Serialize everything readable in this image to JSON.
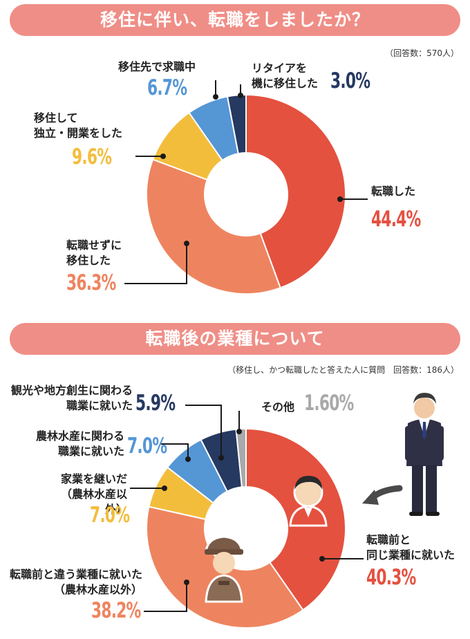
{
  "section1": {
    "title": "移住に伴い、転職をしましたか？",
    "note": "（回答数：570人）",
    "labels": {
      "s0": "転職した",
      "s1": "転職せずに\n移住した",
      "s2": "移住して\n独立・開業をした",
      "s3": "移住先で求職中",
      "s4": "リタイアを\n機に移住した"
    }
  },
  "section2": {
    "title": "転職後の業種について",
    "note": "（移住し、かつ転職したと答えた人に質問　回答数：186人）",
    "labels": {
      "s0": "転職前と\n同じ業種に就いた",
      "s1": "転職前と違う業種に就いた\n（農林水産以外）",
      "s2": "家業を継いだ\n（農林水産以外）",
      "s3": "農林水産に関わる\n職業に就いた",
      "s4": "観光や地方創生に関わる\n職業に就いた",
      "s5": "その他"
    }
  },
  "chart_data": [
    {
      "type": "pie",
      "title": "移住に伴い、転職をしましたか？",
      "note": "（回答数：570人）",
      "slices": [
        {
          "label": "転職した",
          "value": 44.4,
          "display": "44.4%",
          "color": "#e4513f"
        },
        {
          "label": "転職せずに移住した",
          "value": 36.3,
          "display": "36.3%",
          "color": "#ee845f"
        },
        {
          "label": "移住して独立・開業をした",
          "value": 9.6,
          "display": "9.6%",
          "color": "#f3bd3c"
        },
        {
          "label": "移住先で求職中",
          "value": 6.7,
          "display": "6.7%",
          "color": "#5596d5"
        },
        {
          "label": "リタイアを機に移住した",
          "value": 3.0,
          "display": "3.0%",
          "color": "#263961"
        }
      ]
    },
    {
      "type": "pie",
      "title": "転職後の業種について",
      "note": "（移住し、かつ転職したと答えた人に質問　回答数：186人）",
      "slices": [
        {
          "label": "転職前と同じ業種に就いた",
          "value": 40.3,
          "display": "40.3%",
          "color": "#e4513f"
        },
        {
          "label": "転職前と違う業種に就いた（農林水産以外）",
          "value": 38.2,
          "display": "38.2%",
          "color": "#ee845f"
        },
        {
          "label": "家業を継いだ（農林水産以外）",
          "value": 7.0,
          "display": "7.0%",
          "color": "#f3bd3c"
        },
        {
          "label": "農林水産に関わる職業に就いた",
          "value": 7.0,
          "display": "7.0%",
          "color": "#5596d5"
        },
        {
          "label": "観光や地方創生に関わる職業に就いた",
          "value": 5.9,
          "display": "5.9%",
          "color": "#263961"
        },
        {
          "label": "その他",
          "value": 1.6,
          "display": "1.60%",
          "color": "#a9a9a9"
        }
      ]
    }
  ]
}
